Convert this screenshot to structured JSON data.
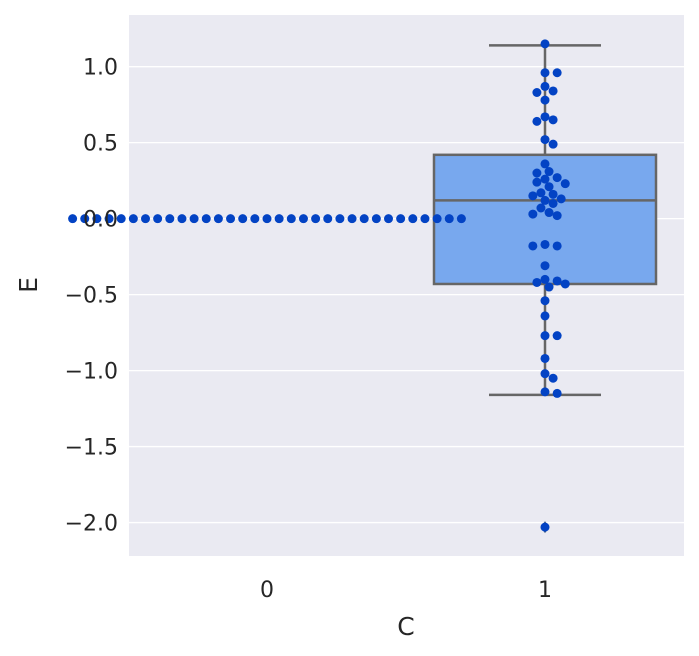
{
  "chart_data": {
    "type": "box_swarm",
    "xlabel": "C",
    "ylabel": "E",
    "categories": [
      "0",
      "1"
    ],
    "ylim": [
      -2.22,
      1.34
    ],
    "yticks": [
      1.0,
      0.5,
      0.0,
      -0.5,
      -1.0,
      -1.5,
      -2.0
    ],
    "ytick_labels": [
      "1.0",
      "0.5",
      "0.0",
      "−0.5",
      "−1.0",
      "−1.5",
      "−2.0"
    ],
    "grid": true,
    "box": {
      "category": "1",
      "q1": -0.43,
      "median": 0.12,
      "q3": 0.42,
      "whisker_low": -1.16,
      "whisker_high": 1.14,
      "outliers": [
        -2.03
      ]
    },
    "swarm": [
      {
        "category": "0",
        "values": [
          0,
          0,
          0,
          0,
          0,
          0,
          0,
          0,
          0,
          0,
          0,
          0,
          0,
          0,
          0,
          0,
          0,
          0,
          0,
          0,
          0,
          0,
          0,
          0,
          0,
          0,
          0,
          0,
          0,
          0,
          0,
          0,
          0
        ]
      },
      {
        "category": "1",
        "values": [
          1.15,
          0.96,
          0.96,
          0.87,
          0.84,
          0.83,
          0.78,
          0.67,
          0.65,
          0.64,
          0.52,
          0.49,
          0.36,
          0.31,
          0.3,
          0.27,
          0.26,
          0.24,
          0.23,
          0.21,
          0.17,
          0.16,
          0.15,
          0.13,
          0.12,
          0.1,
          0.07,
          0.04,
          0.03,
          0.02,
          -0.18,
          -0.18,
          -0.17,
          -0.31,
          -0.4,
          -0.41,
          -0.42,
          -0.43,
          -0.45,
          -0.54,
          -0.64,
          -0.77,
          -0.77,
          -0.92,
          -1.02,
          -1.05,
          -1.14,
          -1.15,
          -2.03
        ]
      }
    ],
    "colors": {
      "background": "#eaeaf2",
      "grid": "#ffffff",
      "box_fill": "#78a8ee",
      "box_edge": "#666666",
      "points": "#0343c4",
      "text": "#262626"
    }
  }
}
